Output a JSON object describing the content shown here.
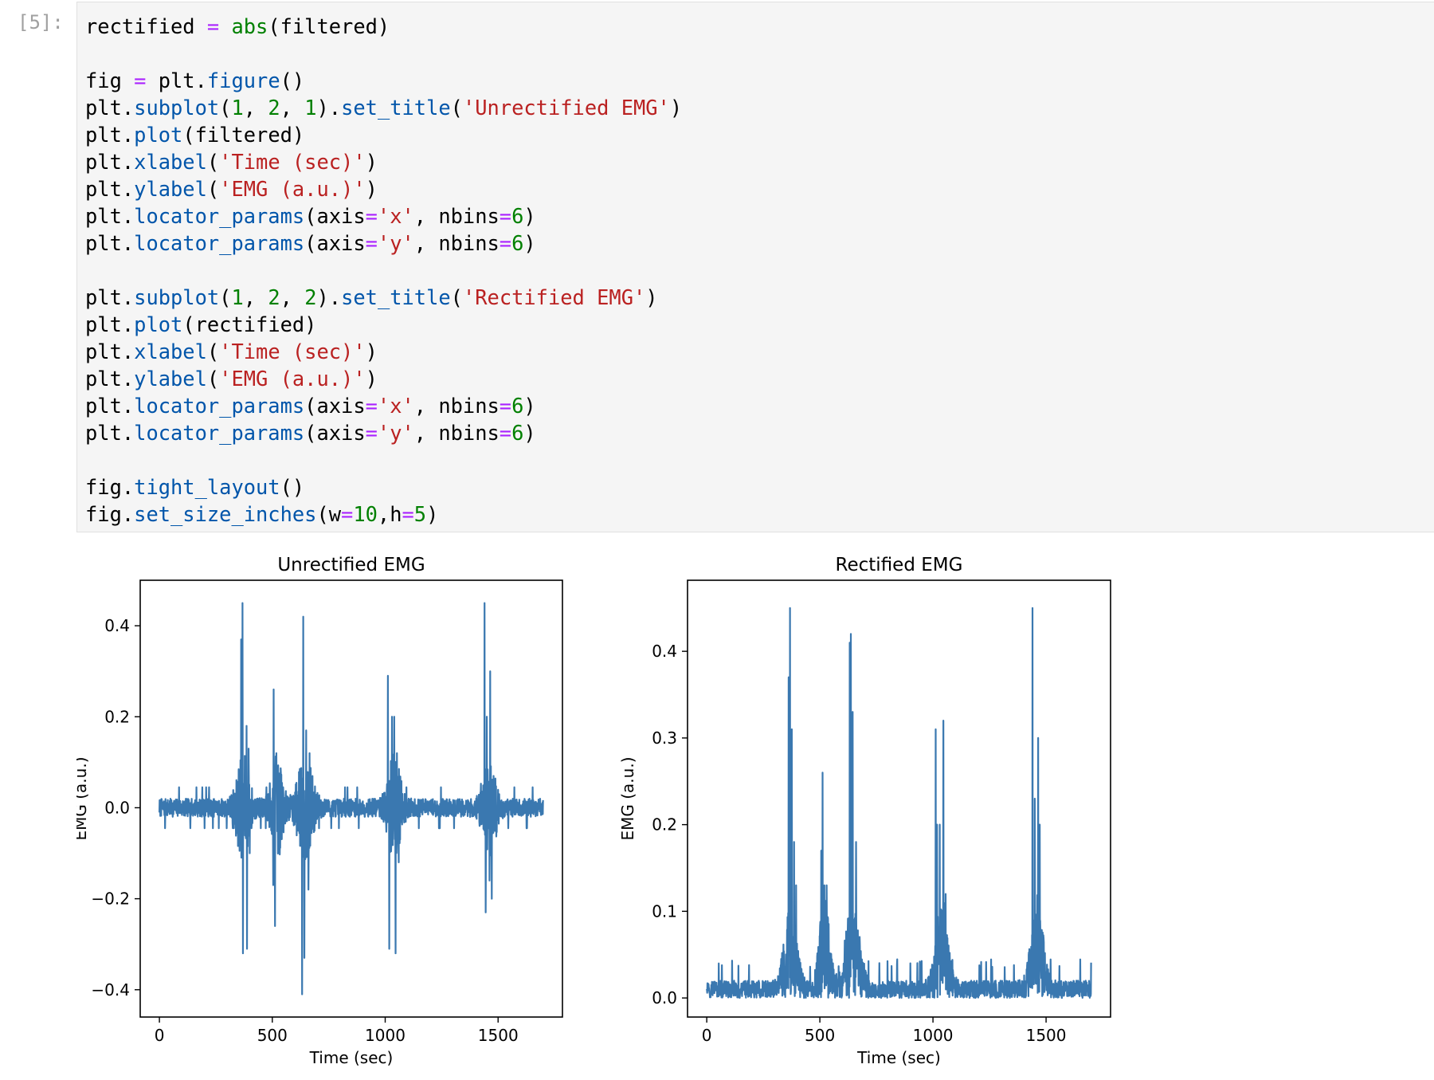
{
  "cell": {
    "prompt": "[5]:",
    "code_lines": [
      [
        [
          "rectified",
          "p"
        ],
        [
          " ",
          "p"
        ],
        [
          "=",
          "o"
        ],
        [
          " ",
          "p"
        ],
        [
          "abs",
          "b"
        ],
        [
          "(filtered)",
          "p"
        ]
      ],
      [],
      [
        [
          "fig",
          "p"
        ],
        [
          " ",
          "p"
        ],
        [
          "=",
          "o"
        ],
        [
          " plt.",
          "p"
        ],
        [
          "figure",
          "f"
        ],
        [
          "()",
          "p"
        ]
      ],
      [
        [
          "plt.",
          "p"
        ],
        [
          "subplot",
          "f"
        ],
        [
          "(",
          "p"
        ],
        [
          "1",
          "n"
        ],
        [
          ", ",
          "p"
        ],
        [
          "2",
          "n"
        ],
        [
          ", ",
          "p"
        ],
        [
          "1",
          "n"
        ],
        [
          ").",
          "p"
        ],
        [
          "set_title",
          "f"
        ],
        [
          "(",
          "p"
        ],
        [
          "'Unrectified EMG'",
          "s"
        ],
        [
          ")",
          "p"
        ]
      ],
      [
        [
          "plt.",
          "p"
        ],
        [
          "plot",
          "f"
        ],
        [
          "(filtered)",
          "p"
        ]
      ],
      [
        [
          "plt.",
          "p"
        ],
        [
          "xlabel",
          "f"
        ],
        [
          "(",
          "p"
        ],
        [
          "'Time (sec)'",
          "s"
        ],
        [
          ")",
          "p"
        ]
      ],
      [
        [
          "plt.",
          "p"
        ],
        [
          "ylabel",
          "f"
        ],
        [
          "(",
          "p"
        ],
        [
          "'EMG (a.u.)'",
          "s"
        ],
        [
          ")",
          "p"
        ]
      ],
      [
        [
          "plt.",
          "p"
        ],
        [
          "locator_params",
          "f"
        ],
        [
          "(axis",
          "p"
        ],
        [
          "=",
          "o"
        ],
        [
          "'x'",
          "s"
        ],
        [
          ", nbins",
          "p"
        ],
        [
          "=",
          "o"
        ],
        [
          "6",
          "n"
        ],
        [
          ")",
          "p"
        ]
      ],
      [
        [
          "plt.",
          "p"
        ],
        [
          "locator_params",
          "f"
        ],
        [
          "(axis",
          "p"
        ],
        [
          "=",
          "o"
        ],
        [
          "'y'",
          "s"
        ],
        [
          ", nbins",
          "p"
        ],
        [
          "=",
          "o"
        ],
        [
          "6",
          "n"
        ],
        [
          ")",
          "p"
        ]
      ],
      [],
      [
        [
          "plt.",
          "p"
        ],
        [
          "subplot",
          "f"
        ],
        [
          "(",
          "p"
        ],
        [
          "1",
          "n"
        ],
        [
          ", ",
          "p"
        ],
        [
          "2",
          "n"
        ],
        [
          ", ",
          "p"
        ],
        [
          "2",
          "n"
        ],
        [
          ").",
          "p"
        ],
        [
          "set_title",
          "f"
        ],
        [
          "(",
          "p"
        ],
        [
          "'Rectified EMG'",
          "s"
        ],
        [
          ")",
          "p"
        ]
      ],
      [
        [
          "plt.",
          "p"
        ],
        [
          "plot",
          "f"
        ],
        [
          "(rectified)",
          "p"
        ]
      ],
      [
        [
          "plt.",
          "p"
        ],
        [
          "xlabel",
          "f"
        ],
        [
          "(",
          "p"
        ],
        [
          "'Time (sec)'",
          "s"
        ],
        [
          ")",
          "p"
        ]
      ],
      [
        [
          "plt.",
          "p"
        ],
        [
          "ylabel",
          "f"
        ],
        [
          "(",
          "p"
        ],
        [
          "'EMG (a.u.)'",
          "s"
        ],
        [
          ")",
          "p"
        ]
      ],
      [
        [
          "plt.",
          "p"
        ],
        [
          "locator_params",
          "f"
        ],
        [
          "(axis",
          "p"
        ],
        [
          "=",
          "o"
        ],
        [
          "'x'",
          "s"
        ],
        [
          ", nbins",
          "p"
        ],
        [
          "=",
          "o"
        ],
        [
          "6",
          "n"
        ],
        [
          ")",
          "p"
        ]
      ],
      [
        [
          "plt.",
          "p"
        ],
        [
          "locator_params",
          "f"
        ],
        [
          "(axis",
          "p"
        ],
        [
          "=",
          "o"
        ],
        [
          "'y'",
          "s"
        ],
        [
          ", nbins",
          "p"
        ],
        [
          "=",
          "o"
        ],
        [
          "6",
          "n"
        ],
        [
          ")",
          "p"
        ]
      ],
      [],
      [
        [
          "fig.",
          "p"
        ],
        [
          "tight_layout",
          "f"
        ],
        [
          "()",
          "p"
        ]
      ],
      [
        [
          "fig.",
          "p"
        ],
        [
          "set_size_inches",
          "f"
        ],
        [
          "(w",
          "p"
        ],
        [
          "=",
          "o"
        ],
        [
          "10",
          "n"
        ],
        [
          ",h",
          "p"
        ],
        [
          "=",
          "o"
        ],
        [
          "5",
          "n"
        ],
        [
          ")",
          "p"
        ]
      ]
    ]
  },
  "colors": {
    "line": "#3a78b0",
    "code_background": "#f5f5f5",
    "prompt": "#a0a0a0"
  },
  "chart_data": [
    {
      "type": "line",
      "title": "Unrectified EMG",
      "xlabel": "Time (sec)",
      "ylabel": "EMG (a.u.)",
      "xlim": [
        -85,
        1785
      ],
      "ylim": [
        -0.46,
        0.5
      ],
      "xticks": [
        0,
        500,
        1000,
        1500
      ],
      "xtick_labels": [
        "0",
        "500",
        "1000",
        "1500"
      ],
      "yticks": [
        -0.4,
        -0.2,
        0.0,
        0.2,
        0.4
      ],
      "ytick_labels": [
        "−0.4",
        "−0.2",
        "0.0",
        "0.2",
        "0.4"
      ],
      "grid": false,
      "series_length": 1700,
      "noise_amplitude": 0.02,
      "bursts": [
        {
          "center": 370,
          "width": 35,
          "positive_peaks": [
            [
              362,
              0.37
            ],
            [
              368,
              0.45
            ],
            [
              386,
              0.18
            ],
            [
              395,
              0.13
            ]
          ],
          "negative_peaks": [
            [
              370,
              -0.32
            ],
            [
              388,
              -0.31
            ],
            [
              400,
              -0.1
            ]
          ]
        },
        {
          "center": 520,
          "width": 30,
          "positive_peaks": [
            [
              506,
              0.26
            ],
            [
              518,
              0.12
            ]
          ],
          "negative_peaks": [
            [
              504,
              -0.17
            ],
            [
              512,
              -0.26
            ]
          ]
        },
        {
          "center": 645,
          "width": 40,
          "positive_peaks": [
            [
              637,
              0.42
            ],
            [
              650,
              0.17
            ],
            [
              665,
              0.12
            ]
          ],
          "negative_peaks": [
            [
              632,
              -0.41
            ],
            [
              642,
              -0.33
            ],
            [
              660,
              -0.18
            ]
          ]
        },
        {
          "center": 1040,
          "width": 35,
          "positive_peaks": [
            [
              1012,
              0.29
            ],
            [
              1030,
              0.2
            ],
            [
              1040,
              0.2
            ],
            [
              1052,
              0.12
            ]
          ],
          "negative_peaks": [
            [
              1018,
              -0.31
            ],
            [
              1046,
              -0.32
            ],
            [
              1060,
              -0.12
            ]
          ]
        },
        {
          "center": 1460,
          "width": 35,
          "positive_peaks": [
            [
              1440,
              0.45
            ],
            [
              1450,
              0.2
            ],
            [
              1465,
              0.3
            ],
            [
              1480,
              0.07
            ]
          ],
          "negative_peaks": [
            [
              1445,
              -0.23
            ],
            [
              1462,
              -0.16
            ],
            [
              1472,
              -0.2
            ]
          ]
        }
      ]
    },
    {
      "type": "line",
      "title": "Rectified EMG",
      "xlabel": "Time (sec)",
      "ylabel": "EMG (a.u.)",
      "xlim": [
        -85,
        1785
      ],
      "ylim": [
        -0.022,
        0.482
      ],
      "xticks": [
        0,
        500,
        1000,
        1500
      ],
      "xtick_labels": [
        "0",
        "500",
        "1000",
        "1500"
      ],
      "yticks": [
        0.0,
        0.1,
        0.2,
        0.3,
        0.4
      ],
      "ytick_labels": [
        "0.0",
        "0.1",
        "0.2",
        "0.3",
        "0.4"
      ],
      "grid": false,
      "series_length": 1700,
      "noise_amplitude": 0.02,
      "bursts": [
        {
          "center": 370,
          "width": 35,
          "peaks": [
            [
              362,
              0.37
            ],
            [
              368,
              0.45
            ],
            [
              376,
              0.31
            ],
            [
              386,
              0.18
            ],
            [
              395,
              0.13
            ]
          ]
        },
        {
          "center": 520,
          "width": 30,
          "peaks": [
            [
              506,
              0.17
            ],
            [
              512,
              0.26
            ],
            [
              520,
              0.13
            ],
            [
              530,
              0.13
            ]
          ]
        },
        {
          "center": 645,
          "width": 40,
          "peaks": [
            [
              632,
              0.41
            ],
            [
              637,
              0.42
            ],
            [
              645,
              0.33
            ],
            [
              660,
              0.18
            ]
          ]
        },
        {
          "center": 1040,
          "width": 35,
          "peaks": [
            [
              1012,
              0.31
            ],
            [
              1018,
              0.2
            ],
            [
              1030,
              0.2
            ],
            [
              1046,
              0.32
            ],
            [
              1056,
              0.12
            ]
          ]
        },
        {
          "center": 1460,
          "width": 35,
          "peaks": [
            [
              1440,
              0.45
            ],
            [
              1450,
              0.23
            ],
            [
              1465,
              0.3
            ],
            [
              1472,
              0.2
            ],
            [
              1480,
              0.07
            ]
          ]
        }
      ]
    }
  ]
}
